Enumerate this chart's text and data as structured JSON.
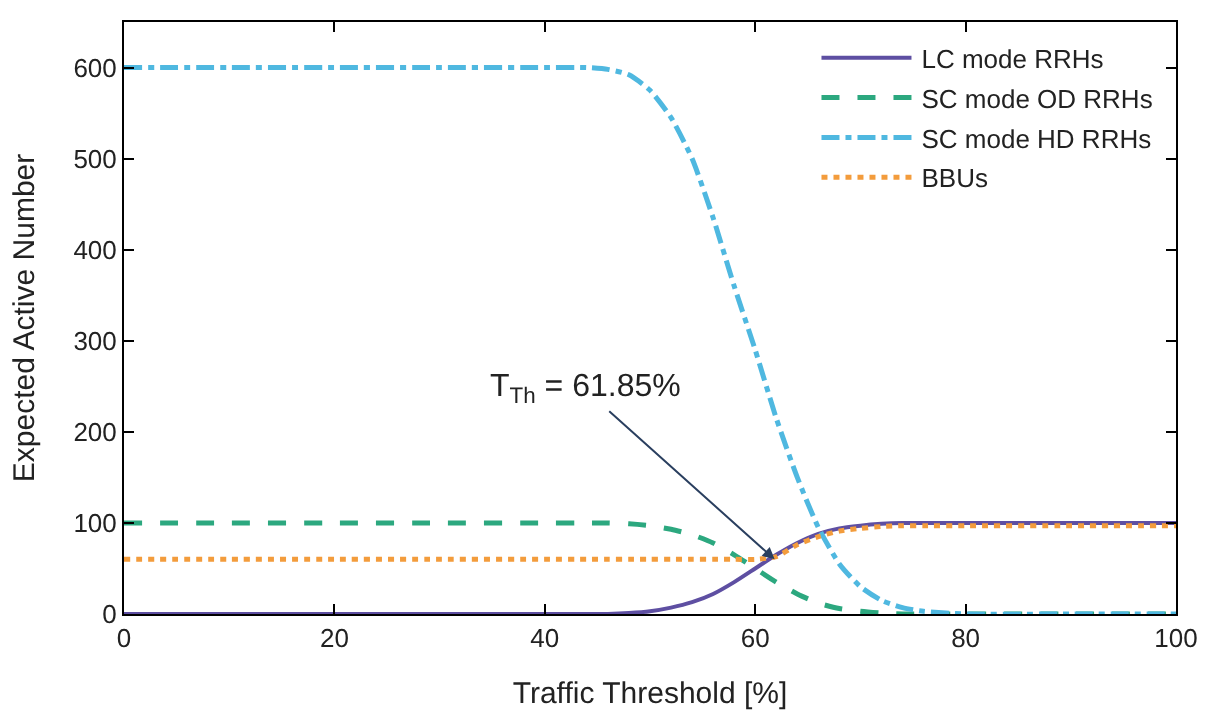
{
  "chart_data": {
    "type": "line",
    "xlabel": "Traffic Threshold [%]",
    "ylabel": "Expected Active Number",
    "x": [
      0,
      10,
      20,
      30,
      40,
      44,
      46,
      48,
      50,
      52,
      54,
      56,
      58,
      60,
      62,
      64,
      66,
      68,
      70,
      72,
      74,
      76,
      80,
      90,
      100
    ],
    "series": [
      {
        "name": "LC mode RRHs",
        "color": "#5e4fa2",
        "line_style": "solid",
        "values": [
          0,
          0,
          0,
          0,
          0,
          0,
          0,
          1,
          3,
          7,
          13,
          22,
          35,
          50,
          65,
          78,
          88,
          94,
          97,
          99,
          100,
          100,
          100,
          100,
          100
        ]
      },
      {
        "name": "SC mode OD RRHs",
        "color": "#2ca87f",
        "line_style": "dashed",
        "values": [
          100,
          100,
          100,
          100,
          100,
          100,
          100,
          99,
          97,
          93,
          87,
          78,
          65,
          50,
          35,
          22,
          12,
          6,
          3,
          1,
          0,
          0,
          0,
          0,
          0
        ]
      },
      {
        "name": "SC mode HD RRHs",
        "color": "#4fb8e0",
        "line_style": "dashdot",
        "values": [
          600,
          600,
          600,
          600,
          600,
          600,
          598,
          592,
          575,
          545,
          500,
          435,
          360,
          290,
          215,
          150,
          95,
          55,
          30,
          15,
          7,
          3,
          0,
          0,
          0
        ]
      },
      {
        "name": "BBUs",
        "color": "#f39c3c",
        "line_style": "dotted",
        "values": [
          60,
          60,
          60,
          60,
          60,
          60,
          60,
          60,
          60,
          60,
          60,
          60,
          60,
          60,
          63,
          76,
          85,
          91,
          94,
          96,
          97,
          97,
          97,
          97,
          97
        ]
      }
    ],
    "annotations": [
      {
        "text": "T$_{Th}$ = 61.85%",
        "x": 61.85,
        "y": 60
      }
    ],
    "xlim": [
      0,
      100
    ],
    "xticks": [
      0,
      20,
      40,
      60,
      80,
      100
    ],
    "ylim": [
      0,
      650
    ],
    "yticks": [
      0,
      100,
      200,
      300,
      400,
      500,
      600
    ],
    "legend": "top right",
    "marker": "none"
  }
}
